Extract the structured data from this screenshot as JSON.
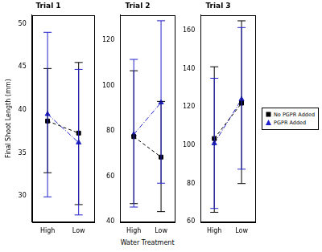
{
  "chart_data": [
    {
      "type": "line",
      "title": "Trial 1",
      "y_label": "Final Shoot Length (mm)",
      "categories": [
        "High",
        "Low"
      ],
      "ylim": [
        27,
        51
      ],
      "yticks": [
        30,
        35,
        40,
        45,
        50
      ],
      "series": [
        {
          "name": "No PGPR Added",
          "color": "#000000",
          "marker": "square",
          "line_style": "dashed",
          "values": [
            38.7,
            37.3
          ],
          "error_low": [
            32.7,
            29.0
          ],
          "error_high": [
            44.8,
            45.5
          ]
        },
        {
          "name": "PGPR Added",
          "color": "#2222cc",
          "marker": "triangle",
          "line_style": "dashdot",
          "values": [
            39.5,
            36.2
          ],
          "error_low": [
            29.9,
            27.8
          ],
          "error_high": [
            49.0,
            44.7
          ]
        }
      ]
    },
    {
      "type": "line",
      "title": "Trial 2",
      "x_label": "Water Treatment",
      "categories": [
        "High",
        "Low"
      ],
      "ylim": [
        40,
        131
      ],
      "yticks": [
        40,
        60,
        80,
        100,
        120
      ],
      "series": [
        {
          "name": "No PGPR Added",
          "color": "#000000",
          "marker": "square",
          "line_style": "dashed",
          "values": [
            77.5,
            68.5
          ],
          "error_low": [
            48.0,
            44.5
          ],
          "error_high": [
            106.5,
            93.0
          ]
        },
        {
          "name": "PGPR Added",
          "color": "#2222cc",
          "marker": "triangle",
          "line_style": "dashdot",
          "values": [
            78.5,
            92.5
          ],
          "error_low": [
            46.5,
            57.0
          ],
          "error_high": [
            111.5,
            128.5
          ]
        }
      ]
    },
    {
      "type": "line",
      "title": "Trial 3",
      "legend": "right",
      "categories": [
        "High",
        "Low"
      ],
      "ylim": [
        60,
        168
      ],
      "yticks": [
        60,
        80,
        100,
        120,
        140,
        160
      ],
      "series": [
        {
          "name": "No PGPR Added",
          "color": "#000000",
          "marker": "square",
          "line_style": "dashed",
          "values": [
            103.5,
            122.0
          ],
          "error_low": [
            65.0,
            80.0
          ],
          "error_high": [
            141.0,
            165.0
          ]
        },
        {
          "name": "PGPR Added",
          "color": "#2222cc",
          "marker": "triangle",
          "line_style": "dashdot",
          "values": [
            101.0,
            124.0
          ],
          "error_low": [
            67.0,
            87.5
          ],
          "error_high": [
            135.0,
            161.5
          ]
        }
      ]
    }
  ]
}
